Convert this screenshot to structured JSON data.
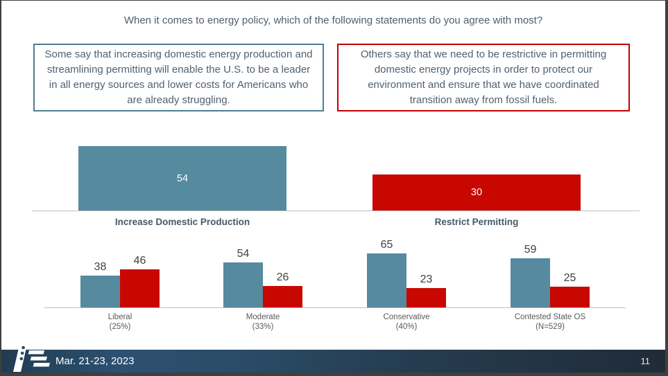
{
  "slide": {
    "title": "When it comes to energy policy, which of the following statements do you agree with most?",
    "footer": {
      "date": "Mar. 21-23, 2023",
      "page_number": "11",
      "logo": "flag-stripes-logo"
    }
  },
  "statements": {
    "left": {
      "text": "Some say that increasing domestic energy production and streamlining permitting will enable the U.S. to be a leader in all energy sources and lower costs for Americans who are already struggling.",
      "border_color": "#4e7d94"
    },
    "right": {
      "text": "Others say that we need to be restrictive in permitting domestic energy projects in order to protect our environment and ensure that we have coordinated transition away from fossil fuels.",
      "border_color": "#c00000"
    }
  },
  "colors": {
    "production_blue": "#568a9e",
    "restrict_red": "#c90701",
    "axis_gray": "#bfbfbf",
    "value_label_dark": "#3f3f3f",
    "value_label_light": "#ffffff"
  },
  "chart_data": [
    {
      "type": "bar",
      "title": "Overall preference",
      "categories": [
        "Increase Domestic Production",
        "Restrict Permitting"
      ],
      "values": [
        54,
        30
      ],
      "bar_colors": [
        "#568a9e",
        "#c90701"
      ],
      "value_labels": "inside-white",
      "ylim": [
        0,
        60
      ],
      "grid": false,
      "legend": "none"
    },
    {
      "type": "bar",
      "title": "Preference by ideology",
      "categories": [
        "Liberal",
        "Moderate",
        "Conservative",
        "Contested State OS"
      ],
      "category_sublabels": [
        "(25%)",
        "(33%)",
        "(40%)",
        "(N=529)"
      ],
      "series": [
        {
          "name": "Increase Domestic Production",
          "color": "#568a9e",
          "values": [
            38,
            54,
            65,
            59
          ]
        },
        {
          "name": "Restrict Permitting",
          "color": "#c90701",
          "values": [
            46,
            26,
            23,
            25
          ]
        }
      ],
      "value_labels": "above-dark",
      "ylim": [
        0,
        70
      ],
      "grid": false,
      "legend": "none"
    }
  ]
}
